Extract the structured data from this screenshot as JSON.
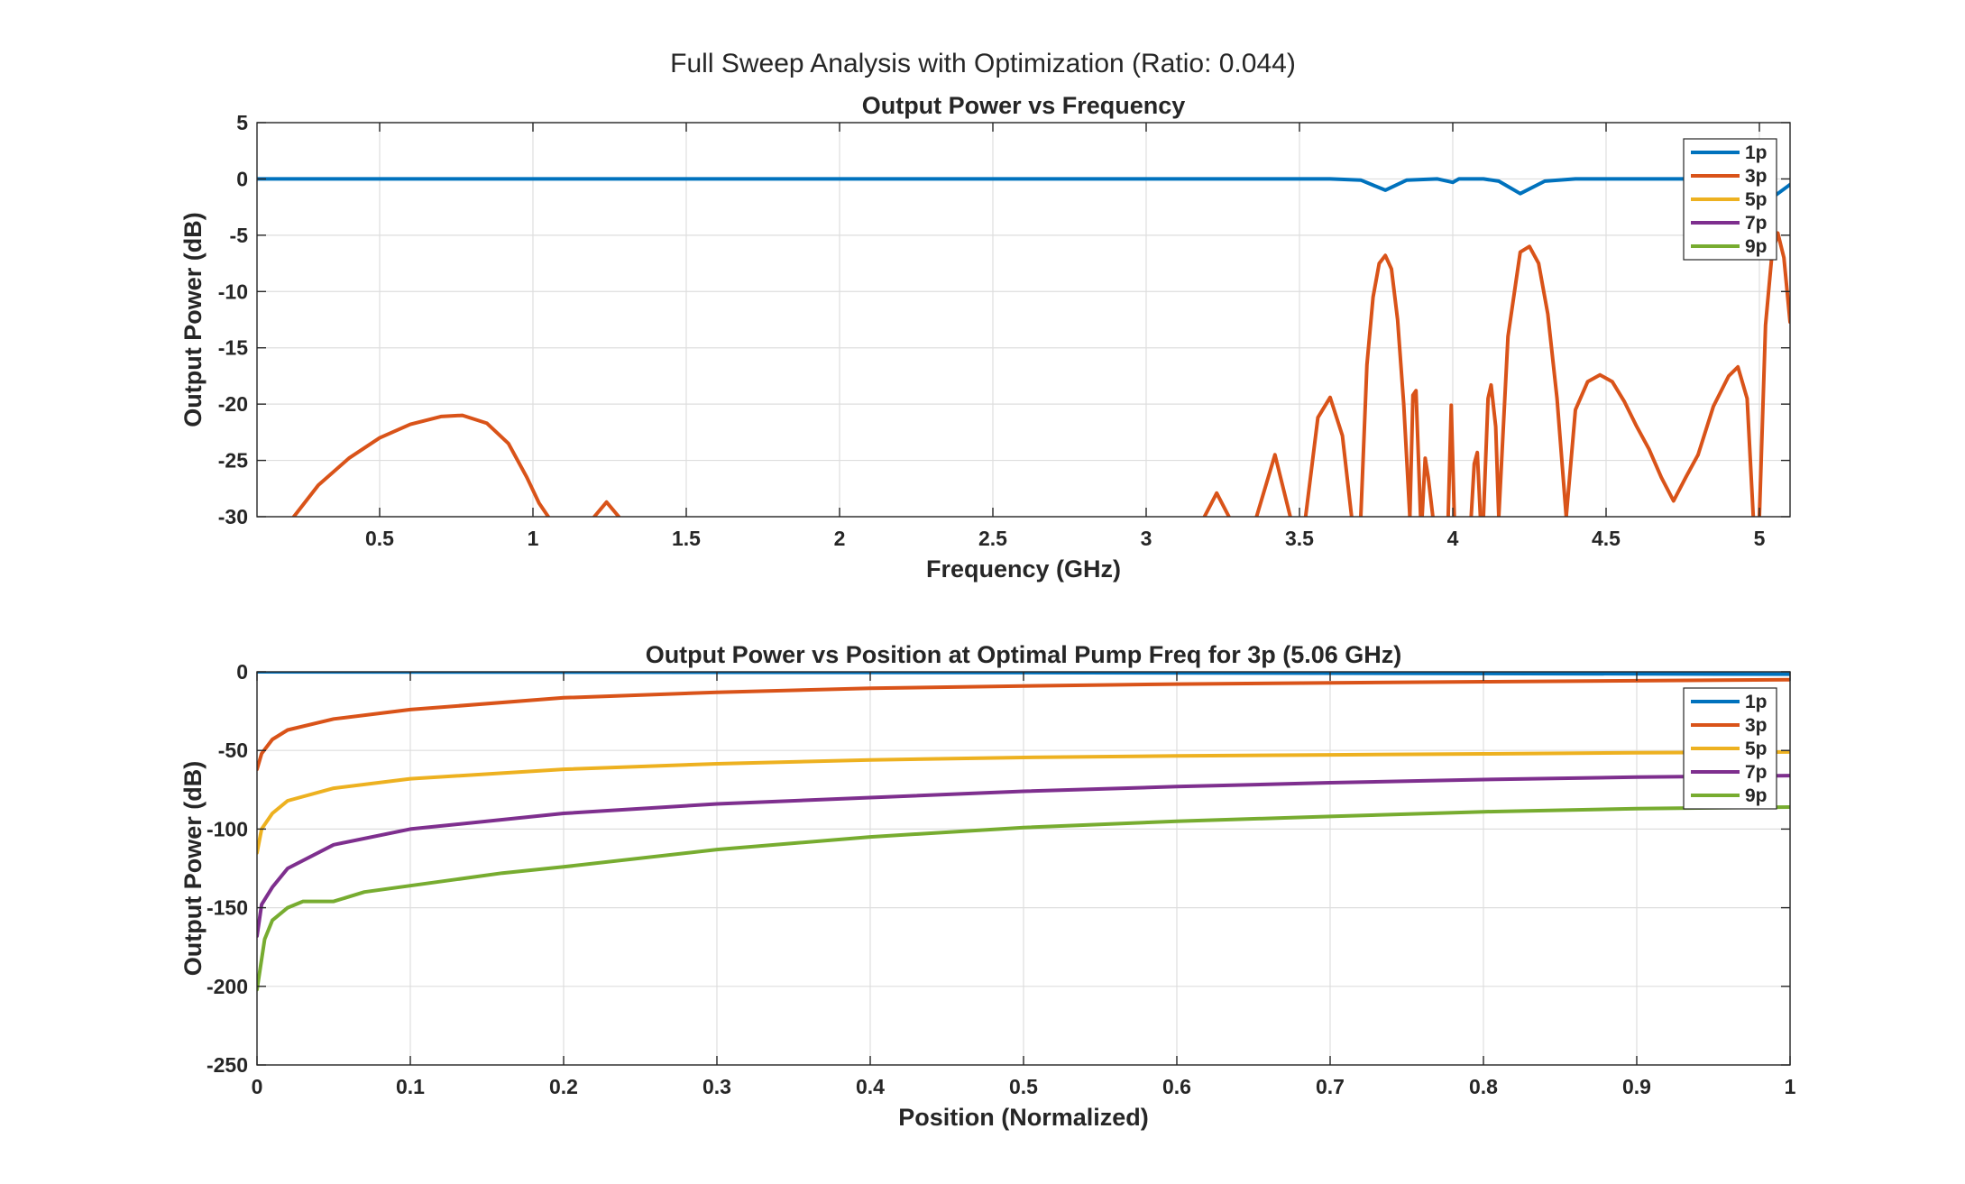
{
  "figure": {
    "suptitle": "Full Sweep Analysis with Optimization (Ratio: 0.044)",
    "legend_placement": "top-right"
  },
  "chart_data": [
    {
      "type": "line",
      "title": "Output Power vs Frequency",
      "xlabel": "Frequency (GHz)",
      "ylabel": "Output Power (dB)",
      "xlim": [
        0.1,
        5.1
      ],
      "ylim": [
        -30,
        5
      ],
      "xticks": [
        0.5,
        1,
        1.5,
        2,
        2.5,
        3,
        3.5,
        4,
        4.5,
        5
      ],
      "xtick_labels": [
        "0.5",
        "1",
        "1.5",
        "2",
        "2.5",
        "3",
        "3.5",
        "4",
        "4.5",
        "5"
      ],
      "yticks": [
        5,
        0,
        -5,
        -10,
        -15,
        -20,
        -25,
        -30
      ],
      "ytick_labels": [
        "5",
        "0",
        "-5",
        "-10",
        "-15",
        "-20",
        "-25",
        "-30"
      ],
      "grid": true,
      "legend": [
        "1p",
        "3p",
        "5p",
        "7p",
        "9p"
      ],
      "series": [
        {
          "name": "1p",
          "color": "#0072BD",
          "x": [
            0.1,
            1,
            2,
            3,
            3.6,
            3.7,
            3.78,
            3.85,
            3.95,
            4,
            4.02,
            4.1,
            4.15,
            4.22,
            4.3,
            4.4,
            4.6,
            4.8,
            4.98,
            5.05,
            5.1
          ],
          "y": [
            0,
            0,
            0,
            0,
            0,
            -0.1,
            -1,
            -0.1,
            0,
            -0.3,
            0,
            0,
            -0.2,
            -1.3,
            -0.2,
            0,
            0,
            0,
            0,
            -1.5,
            -0.5
          ]
        },
        {
          "name": "3p",
          "color": "#D95319",
          "segments": [
            {
              "x": [
                0.22,
                0.3,
                0.4,
                0.5,
                0.6,
                0.7,
                0.77,
                0.85,
                0.92,
                0.98,
                1.02,
                1.05
              ],
              "y": [
                -30,
                -27.2,
                -24.8,
                -23.0,
                -21.8,
                -21.1,
                -21.0,
                -21.7,
                -23.5,
                -26.5,
                -28.8,
                -30
              ]
            },
            {
              "x": [
                1.2,
                1.24,
                1.28
              ],
              "y": [
                -30,
                -28.7,
                -30
              ]
            },
            {
              "x": [
                3.19,
                3.23,
                3.27
              ],
              "y": [
                -30,
                -27.9,
                -30
              ]
            },
            {
              "x": [
                3.36,
                3.42,
                3.47
              ],
              "y": [
                -30,
                -24.5,
                -30
              ]
            },
            {
              "x": [
                3.52,
                3.56,
                3.6,
                3.64,
                3.67
              ],
              "y": [
                -30,
                -21.2,
                -19.4,
                -22.8,
                -30
              ]
            },
            {
              "x": [
                3.7,
                3.72,
                3.74,
                3.76,
                3.78,
                3.8,
                3.82,
                3.84,
                3.86
              ],
              "y": [
                -30,
                -16.5,
                -10.5,
                -7.5,
                -6.8,
                -8.0,
                -12.5,
                -20.0,
                -30
              ]
            },
            {
              "x": [
                3.86,
                3.87,
                3.88,
                3.895
              ],
              "y": [
                -30,
                -19.2,
                -18.8,
                -30
              ]
            },
            {
              "x": [
                3.9,
                3.91,
                3.92,
                3.935
              ],
              "y": [
                -30,
                -24.8,
                -26.5,
                -30
              ]
            },
            {
              "x": [
                3.985,
                3.995,
                4.005
              ],
              "y": [
                -30,
                -20.1,
                -30
              ]
            },
            {
              "x": [
                4.06,
                4.07,
                4.08,
                4.09
              ],
              "y": [
                -30,
                -25.3,
                -24.3,
                -30
              ]
            },
            {
              "x": [
                4.1,
                4.115,
                4.125,
                4.14,
                4.15
              ],
              "y": [
                -30,
                -19.5,
                -18.3,
                -22.0,
                -30
              ]
            },
            {
              "x": [
                4.15,
                4.18,
                4.22,
                4.25,
                4.28,
                4.31,
                4.34,
                4.37
              ],
              "y": [
                -30,
                -14.0,
                -6.5,
                -6.0,
                -7.5,
                -12.0,
                -19.5,
                -30
              ]
            },
            {
              "x": [
                4.37,
                4.4,
                4.44,
                4.48,
                4.52,
                4.56,
                4.6,
                4.64,
                4.68,
                4.72,
                4.76,
                4.8
              ],
              "y": [
                -30,
                -20.5,
                -18.0,
                -17.4,
                -18.0,
                -19.8,
                -22.0,
                -24.0,
                -26.5,
                -28.6,
                -26.5,
                -24.5
              ]
            },
            {
              "x": [
                4.8,
                4.85,
                4.9,
                4.93,
                4.96,
                4.98
              ],
              "y": [
                -24.5,
                -20.2,
                -17.5,
                -16.7,
                -19.5,
                -30
              ]
            },
            {
              "x": [
                5.0,
                5.02,
                5.04,
                5.06,
                5.08,
                5.1
              ],
              "y": [
                -30,
                -13.0,
                -7.0,
                -4.8,
                -7.0,
                -12.7
              ]
            }
          ]
        },
        {
          "name": "5p",
          "color": "#EDB120",
          "x": [],
          "y": []
        },
        {
          "name": "7p",
          "color": "#7E2F8E",
          "x": [],
          "y": []
        },
        {
          "name": "9p",
          "color": "#77AC30",
          "x": [],
          "y": []
        }
      ]
    },
    {
      "type": "line",
      "title": "Output Power vs Position at Optimal Pump Freq for 3p (5.06 GHz)",
      "xlabel": "Position (Normalized)",
      "ylabel": "Output Power (dB)",
      "xlim": [
        0,
        1
      ],
      "ylim": [
        -250,
        0
      ],
      "xticks": [
        0,
        0.1,
        0.2,
        0.3,
        0.4,
        0.5,
        0.6,
        0.7,
        0.8,
        0.9,
        1
      ],
      "xtick_labels": [
        "0",
        "0.1",
        "0.2",
        "0.3",
        "0.4",
        "0.5",
        "0.6",
        "0.7",
        "0.8",
        "0.9",
        "1"
      ],
      "yticks": [
        0,
        -50,
        -100,
        -150,
        -200,
        -250
      ],
      "ytick_labels": [
        "0",
        "-50",
        "-100",
        "-150",
        "-200",
        "-250"
      ],
      "grid": true,
      "legend": [
        "1p",
        "3p",
        "5p",
        "7p",
        "9p"
      ],
      "series": [
        {
          "name": "1p",
          "color": "#0072BD",
          "x": [
            0,
            0.5,
            1
          ],
          "y": [
            0,
            -0.5,
            -1.5
          ]
        },
        {
          "name": "3p",
          "color": "#D95319",
          "x": [
            0,
            0.003,
            0.01,
            0.02,
            0.05,
            0.1,
            0.2,
            0.3,
            0.4,
            0.5,
            0.6,
            0.7,
            0.8,
            0.9,
            1
          ],
          "y": [
            -62,
            -52,
            -43,
            -37,
            -30,
            -24,
            -16.5,
            -13,
            -10.5,
            -9,
            -7.8,
            -7,
            -6.3,
            -5.7,
            -5
          ]
        },
        {
          "name": "5p",
          "color": "#EDB120",
          "x": [
            0,
            0.003,
            0.01,
            0.02,
            0.05,
            0.1,
            0.2,
            0.3,
            0.4,
            0.5,
            0.6,
            0.7,
            0.8,
            0.9,
            1
          ],
          "y": [
            -115,
            -100,
            -90,
            -82,
            -74,
            -68,
            -62,
            -58.5,
            -56,
            -54.5,
            -53.5,
            -52.8,
            -52.2,
            -51.5,
            -51
          ]
        },
        {
          "name": "7p",
          "color": "#7E2F8E",
          "x": [
            0,
            0.003,
            0.01,
            0.02,
            0.05,
            0.1,
            0.2,
            0.3,
            0.4,
            0.5,
            0.6,
            0.7,
            0.8,
            0.9,
            1
          ],
          "y": [
            -168,
            -148,
            -137,
            -125,
            -110,
            -100,
            -90,
            -84,
            -80,
            -76,
            -73,
            -70.5,
            -68.5,
            -67,
            -66
          ]
        },
        {
          "name": "9p",
          "color": "#77AC30",
          "x": [
            0,
            0.005,
            0.01,
            0.02,
            0.03,
            0.05,
            0.07,
            0.1,
            0.13,
            0.16,
            0.2,
            0.3,
            0.4,
            0.5,
            0.6,
            0.7,
            0.8,
            0.9,
            1
          ],
          "y": [
            -202,
            -170,
            -158,
            -150,
            -146,
            -146,
            -140,
            -136,
            -132,
            -128,
            -124,
            -113,
            -105,
            -99,
            -95,
            -92,
            -89,
            -87,
            -86
          ]
        }
      ]
    }
  ]
}
